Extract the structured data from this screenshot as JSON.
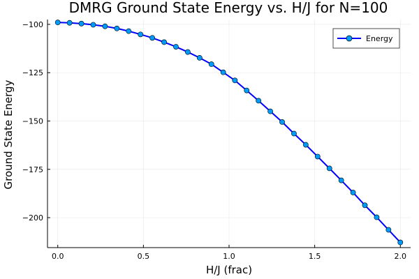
{
  "chart_data": {
    "type": "line",
    "title": "DMRG Ground State Energy vs. H/J for N=100",
    "xlabel": "H/J (frac)",
    "ylabel": "Ground State Energy",
    "xlim": [
      -0.06,
      2.06
    ],
    "ylim": [
      -215.5,
      -97.5
    ],
    "xticks": [
      0.0,
      0.5,
      1.0,
      1.5,
      2.0
    ],
    "xtick_labels": [
      "0.0",
      "0.5",
      "1.0",
      "1.5",
      "2.0"
    ],
    "yticks": [
      -100,
      -125,
      -150,
      -175,
      -200
    ],
    "ytick_labels": [
      "−100",
      "−125",
      "−150",
      "−175",
      "−200"
    ],
    "grid": true,
    "legend_position": "top-right",
    "series": [
      {
        "name": "Energy",
        "line_color": "#0000ff",
        "marker_color": "#009af9",
        "x": [
          0.0,
          0.069,
          0.138,
          0.207,
          0.276,
          0.345,
          0.414,
          0.483,
          0.552,
          0.621,
          0.69,
          0.759,
          0.828,
          0.897,
          0.966,
          1.034,
          1.103,
          1.172,
          1.241,
          1.31,
          1.379,
          1.448,
          1.517,
          1.586,
          1.655,
          1.724,
          1.793,
          1.862,
          1.931,
          2.0
        ],
        "y": [
          -99.0,
          -99.2,
          -99.6,
          -100.2,
          -101.0,
          -102.1,
          -103.5,
          -105.2,
          -107.0,
          -109.2,
          -111.6,
          -114.3,
          -117.3,
          -120.6,
          -124.8,
          -129.0,
          -134.2,
          -139.5,
          -145.0,
          -150.5,
          -156.5,
          -162.3,
          -168.4,
          -174.5,
          -180.7,
          -187.0,
          -193.6,
          -199.8,
          -206.3,
          -212.8
        ]
      }
    ]
  }
}
